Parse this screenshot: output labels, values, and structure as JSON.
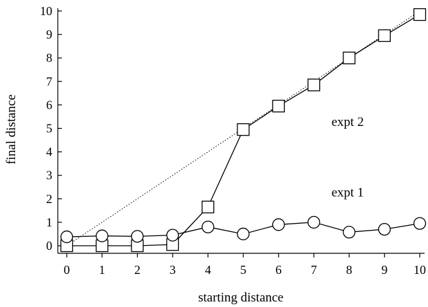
{
  "chart_data": {
    "type": "line",
    "xlabel": "starting distance",
    "ylabel": "final distance",
    "xlim": [
      0,
      10
    ],
    "ylim": [
      0,
      10
    ],
    "x_ticks": [
      "0",
      "1",
      "2",
      "3",
      "4",
      "5",
      "6",
      "7",
      "8",
      "9",
      "10"
    ],
    "y_ticks": [
      "0",
      "1",
      "2",
      "3",
      "4",
      "5",
      "6",
      "7",
      "8",
      "9",
      "10"
    ],
    "grid": false,
    "legend": "none",
    "series": [
      {
        "label": "expt 2",
        "marker": "square",
        "x": [
          0,
          1,
          2,
          3,
          4,
          5,
          6,
          7,
          8,
          9,
          10
        ],
        "y": [
          0.0,
          0.0,
          0.0,
          0.05,
          1.65,
          4.95,
          5.95,
          6.85,
          8.0,
          8.95,
          9.85
        ]
      },
      {
        "label": "expt 1",
        "marker": "circle",
        "x": [
          0,
          1,
          2,
          3,
          4,
          5,
          6,
          7,
          8,
          9,
          10
        ],
        "y": [
          0.38,
          0.42,
          0.4,
          0.45,
          0.8,
          0.5,
          0.9,
          1.0,
          0.58,
          0.7,
          0.95
        ]
      }
    ],
    "reference_line": {
      "style": "dotted",
      "x": [
        0,
        10
      ],
      "y": [
        0,
        10
      ]
    },
    "annotations": [
      {
        "text": "expt 2",
        "x": 7.5,
        "y": 5.1
      },
      {
        "text": "expt 1",
        "x": 7.5,
        "y": 2.1
      }
    ]
  }
}
